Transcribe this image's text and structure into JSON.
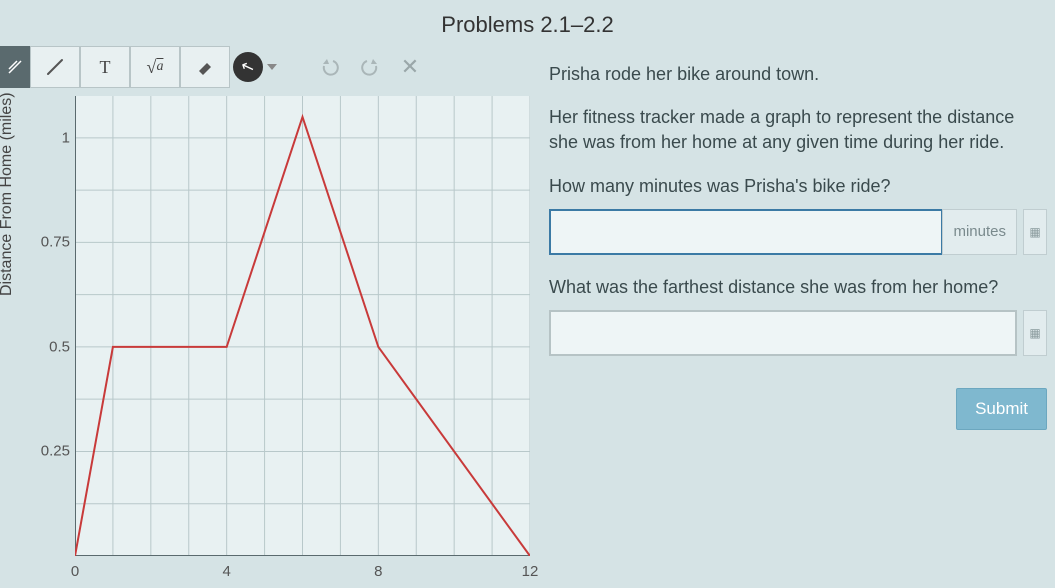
{
  "title": "Problems 2.1–2.2",
  "toolbar": {
    "pen": "✎",
    "text": "T",
    "sqrt": "√a",
    "eraser": "✏",
    "cursor": "↖",
    "undo": "↶",
    "redo": "↷",
    "close": "✕"
  },
  "chart": {
    "type": "line",
    "ylabel": "Distance From Home (miles)",
    "x_min": 0,
    "x_max": 12,
    "y_min": 0,
    "y_max": 1.1,
    "x_ticks": [
      0,
      4,
      8,
      12
    ],
    "y_ticks": [
      0.25,
      0.5,
      0.75,
      1
    ],
    "grid_step_x": 1,
    "grid_step_y": 0.125,
    "background_color": "#e8f1f2",
    "grid_color": "#b8c8ca",
    "axis_color": "#5a6a6e",
    "line_color": "#c83a3a",
    "line_width": 2,
    "points": [
      [
        0,
        0
      ],
      [
        1,
        0.5
      ],
      [
        4,
        0.5
      ],
      [
        6,
        1.05
      ],
      [
        8,
        0.5
      ],
      [
        12,
        0
      ]
    ]
  },
  "problem": {
    "intro": "Prisha rode her bike around town.",
    "description": "Her fitness tracker made a graph to represent the distance she was from her home at any given time during her ride.",
    "q1": "How many minutes was Prisha's bike ride?",
    "q1_unit": "minutes",
    "q1_value": "",
    "q2": "What was the farthest distance she was from her home?",
    "q2_value": "",
    "submit": "Submit"
  }
}
